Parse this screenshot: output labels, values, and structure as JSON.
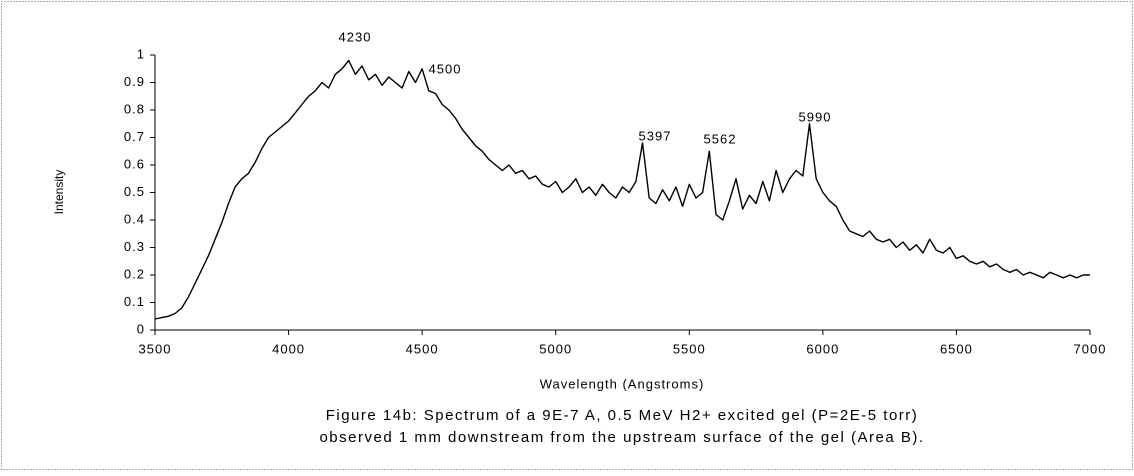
{
  "chart_data": {
    "type": "line",
    "x_label": "Wavelength (Angstroms)",
    "y_label": "Intensity",
    "caption": [
      "Figure 14b: Spectrum of a 9E-7 A, 0.5 MeV H2+ excited gel (P=2E-5 torr)",
      "observed 1 mm downstream from the upstream surface of the gel (Area B)."
    ],
    "annotations": [
      "4230",
      "4500",
      "5397",
      "5562",
      "5990"
    ],
    "xlim": [
      3500,
      7000
    ],
    "xticks": [
      3500,
      4000,
      4500,
      5000,
      5500,
      6000,
      6500,
      7000
    ],
    "ylim": [
      0,
      1
    ],
    "yticks": [
      0,
      0.1,
      0.2,
      0.3,
      0.4,
      0.5,
      0.6,
      0.7,
      0.8,
      0.9,
      1
    ],
    "grid": false,
    "x": [
      3500,
      3525,
      3550,
      3575,
      3600,
      3625,
      3650,
      3675,
      3700,
      3725,
      3750,
      3775,
      3800,
      3825,
      3850,
      3875,
      3900,
      3925,
      3950,
      3975,
      4000,
      4025,
      4050,
      4075,
      4100,
      4125,
      4150,
      4175,
      4200,
      4225,
      4250,
      4275,
      4300,
      4325,
      4350,
      4375,
      4400,
      4425,
      4450,
      4475,
      4500,
      4525,
      4550,
      4575,
      4600,
      4625,
      4650,
      4675,
      4700,
      4725,
      4750,
      4775,
      4800,
      4825,
      4850,
      4875,
      4900,
      4925,
      4950,
      4975,
      5000,
      5025,
      5050,
      5075,
      5100,
      5125,
      5150,
      5175,
      5200,
      5225,
      5250,
      5275,
      5300,
      5325,
      5350,
      5375,
      5400,
      5425,
      5450,
      5475,
      5500,
      5525,
      5550,
      5575,
      5600,
      5625,
      5650,
      5675,
      5700,
      5725,
      5750,
      5775,
      5800,
      5825,
      5850,
      5875,
      5900,
      5925,
      5950,
      5975,
      6000,
      6025,
      6050,
      6075,
      6100,
      6125,
      6150,
      6175,
      6200,
      6225,
      6250,
      6275,
      6300,
      6325,
      6350,
      6375,
      6400,
      6425,
      6450,
      6475,
      6500,
      6525,
      6550,
      6575,
      6600,
      6625,
      6650,
      6675,
      6700,
      6725,
      6750,
      6775,
      6800,
      6825,
      6850,
      6875,
      6900,
      6925,
      6950,
      6975,
      7000
    ],
    "series": [
      {
        "name": "Intensity",
        "color": "#000000",
        "values": [
          0.04,
          0.045,
          0.05,
          0.06,
          0.08,
          0.12,
          0.17,
          0.22,
          0.27,
          0.33,
          0.39,
          0.46,
          0.52,
          0.55,
          0.57,
          0.61,
          0.66,
          0.7,
          0.72,
          0.74,
          0.76,
          0.79,
          0.82,
          0.85,
          0.87,
          0.9,
          0.88,
          0.93,
          0.95,
          0.98,
          0.93,
          0.96,
          0.91,
          0.93,
          0.89,
          0.92,
          0.9,
          0.88,
          0.94,
          0.9,
          0.95,
          0.87,
          0.86,
          0.82,
          0.8,
          0.77,
          0.73,
          0.7,
          0.67,
          0.65,
          0.62,
          0.6,
          0.58,
          0.6,
          0.57,
          0.58,
          0.55,
          0.56,
          0.53,
          0.52,
          0.54,
          0.5,
          0.52,
          0.55,
          0.5,
          0.52,
          0.49,
          0.53,
          0.5,
          0.48,
          0.52,
          0.5,
          0.54,
          0.68,
          0.48,
          0.46,
          0.51,
          0.47,
          0.52,
          0.45,
          0.53,
          0.48,
          0.5,
          0.65,
          0.42,
          0.4,
          0.47,
          0.55,
          0.44,
          0.49,
          0.46,
          0.54,
          0.47,
          0.58,
          0.5,
          0.55,
          0.58,
          0.56,
          0.75,
          0.55,
          0.5,
          0.47,
          0.45,
          0.4,
          0.36,
          0.35,
          0.34,
          0.36,
          0.33,
          0.32,
          0.33,
          0.3,
          0.32,
          0.29,
          0.31,
          0.28,
          0.33,
          0.29,
          0.28,
          0.3,
          0.26,
          0.27,
          0.25,
          0.24,
          0.25,
          0.23,
          0.24,
          0.22,
          0.21,
          0.22,
          0.2,
          0.21,
          0.2,
          0.19,
          0.21,
          0.2,
          0.19,
          0.2,
          0.19,
          0.2,
          0.2
        ]
      }
    ]
  }
}
